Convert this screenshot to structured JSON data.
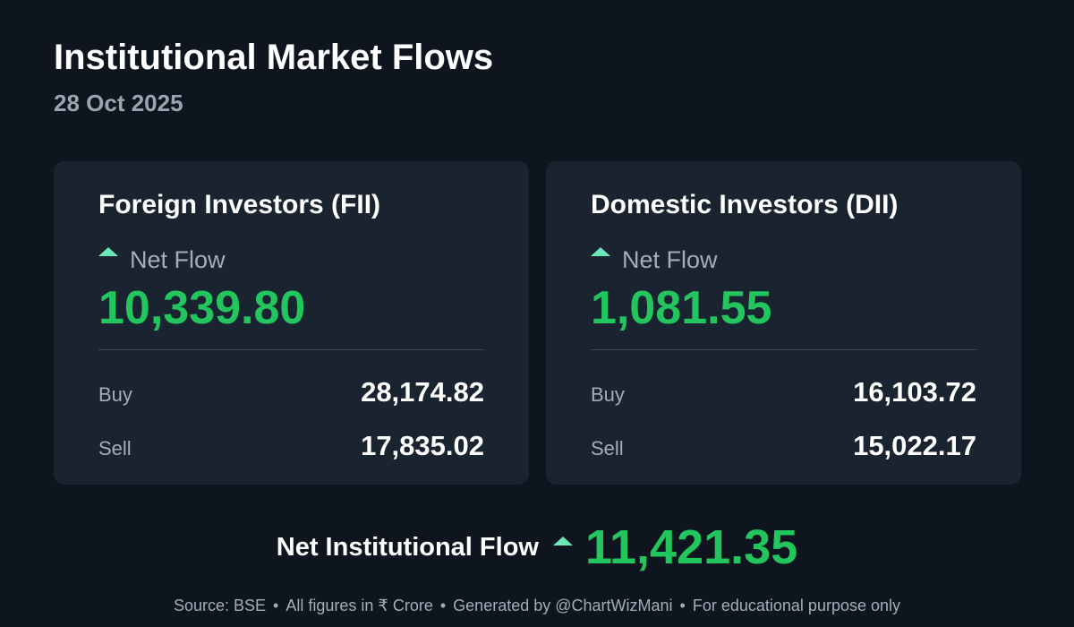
{
  "header": {
    "title": "Institutional Market Flows",
    "date": "28 Oct 2025"
  },
  "cards": [
    {
      "title": "Foreign Investors (FII)",
      "net_label": "Net Flow",
      "net_value": "10,339.80",
      "rows": [
        {
          "label": "Buy",
          "value": "28,174.82"
        },
        {
          "label": "Sell",
          "value": "17,835.02"
        }
      ]
    },
    {
      "title": "Domestic Investors (DII)",
      "net_label": "Net Flow",
      "net_value": "1,081.55",
      "rows": [
        {
          "label": "Buy",
          "value": "16,103.72"
        },
        {
          "label": "Sell",
          "value": "15,022.17"
        }
      ]
    }
  ],
  "total": {
    "label": "Net Institutional Flow",
    "value": "11,421.35"
  },
  "footer": [
    "Source: BSE",
    "All figures in ₹ Crore",
    "Generated by @ChartWizMani",
    "For educational purpose only"
  ]
}
